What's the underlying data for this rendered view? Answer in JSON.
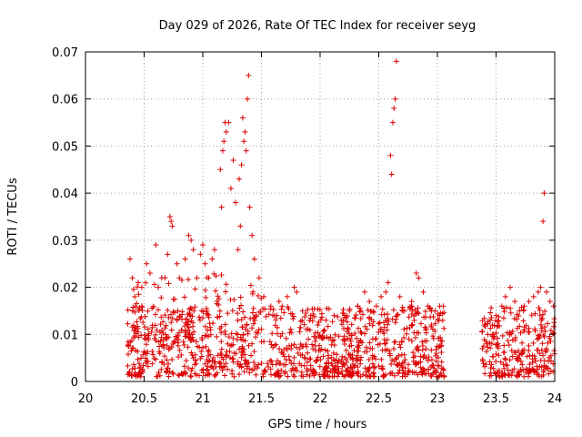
{
  "chart_data": {
    "type": "scatter",
    "title": "Day 029 of 2026, Rate Of TEC Index for receiver seyg",
    "xlabel": "GPS time / hours",
    "ylabel": "ROTI / TECUs",
    "xlim": [
      20,
      24
    ],
    "ylim": [
      0,
      0.07
    ],
    "x_ticks": [
      "20",
      "20.5",
      "21",
      "21.5",
      "22",
      "22.5",
      "23",
      "23.5",
      "24"
    ],
    "y_ticks": [
      "0",
      "0.01",
      "0.02",
      "0.03",
      "0.04",
      "0.05",
      "0.06",
      "0.07"
    ],
    "grid": true,
    "marker": "+",
    "color": "#dd0000",
    "series": [
      {
        "name": "ROTI",
        "points": [
          [
            20.38,
            0.026
          ],
          [
            20.4,
            0.022
          ],
          [
            20.42,
            0.018
          ],
          [
            20.45,
            0.021
          ],
          [
            20.48,
            0.02
          ],
          [
            20.52,
            0.025
          ],
          [
            20.55,
            0.023
          ],
          [
            20.6,
            0.029
          ],
          [
            20.62,
            0.02
          ],
          [
            20.65,
            0.022
          ],
          [
            20.7,
            0.027
          ],
          [
            20.72,
            0.035
          ],
          [
            20.73,
            0.034
          ],
          [
            20.74,
            0.033
          ],
          [
            20.78,
            0.025
          ],
          [
            20.8,
            0.022
          ],
          [
            20.85,
            0.026
          ],
          [
            20.88,
            0.031
          ],
          [
            20.9,
            0.03
          ],
          [
            20.92,
            0.028
          ],
          [
            20.95,
            0.022
          ],
          [
            20.98,
            0.027
          ],
          [
            21.0,
            0.029
          ],
          [
            21.02,
            0.025
          ],
          [
            21.05,
            0.022
          ],
          [
            21.08,
            0.026
          ],
          [
            21.1,
            0.028
          ],
          [
            21.15,
            0.045
          ],
          [
            21.16,
            0.037
          ],
          [
            21.17,
            0.049
          ],
          [
            21.18,
            0.051
          ],
          [
            21.19,
            0.055
          ],
          [
            21.2,
            0.053
          ],
          [
            21.22,
            0.055
          ],
          [
            21.24,
            0.041
          ],
          [
            21.26,
            0.047
          ],
          [
            21.28,
            0.038
          ],
          [
            21.3,
            0.028
          ],
          [
            21.31,
            0.043
          ],
          [
            21.32,
            0.033
          ],
          [
            21.33,
            0.046
          ],
          [
            21.34,
            0.056
          ],
          [
            21.35,
            0.051
          ],
          [
            21.36,
            0.053
          ],
          [
            21.37,
            0.049
          ],
          [
            21.38,
            0.06
          ],
          [
            21.39,
            0.065
          ],
          [
            21.4,
            0.037
          ],
          [
            21.42,
            0.031
          ],
          [
            21.44,
            0.026
          ],
          [
            21.48,
            0.022
          ],
          [
            21.52,
            0.018
          ],
          [
            21.58,
            0.016
          ],
          [
            21.65,
            0.017
          ],
          [
            21.72,
            0.018
          ],
          [
            21.78,
            0.02
          ],
          [
            21.8,
            0.019
          ],
          [
            21.85,
            0.015
          ],
          [
            21.92,
            0.014
          ],
          [
            21.98,
            0.012
          ],
          [
            22.05,
            0.013
          ],
          [
            22.12,
            0.014
          ],
          [
            22.18,
            0.013
          ],
          [
            22.25,
            0.015
          ],
          [
            22.32,
            0.016
          ],
          [
            22.38,
            0.019
          ],
          [
            22.42,
            0.017
          ],
          [
            22.48,
            0.016
          ],
          [
            22.52,
            0.018
          ],
          [
            22.56,
            0.019
          ],
          [
            22.58,
            0.021
          ],
          [
            22.6,
            0.048
          ],
          [
            22.61,
            0.044
          ],
          [
            22.62,
            0.055
          ],
          [
            22.63,
            0.058
          ],
          [
            22.64,
            0.06
          ],
          [
            22.65,
            0.068
          ],
          [
            22.68,
            0.018
          ],
          [
            22.72,
            0.015
          ],
          [
            22.78,
            0.017
          ],
          [
            22.82,
            0.023
          ],
          [
            22.84,
            0.022
          ],
          [
            22.88,
            0.019
          ],
          [
            22.92,
            0.016
          ],
          [
            22.98,
            0.015
          ],
          [
            23.02,
            0.016
          ],
          [
            23.05,
            0.016
          ],
          [
            23.4,
            0.012
          ],
          [
            23.45,
            0.013
          ],
          [
            23.5,
            0.014
          ],
          [
            23.55,
            0.016
          ],
          [
            23.58,
            0.018
          ],
          [
            23.62,
            0.02
          ],
          [
            23.66,
            0.017
          ],
          [
            23.7,
            0.015
          ],
          [
            23.74,
            0.016
          ],
          [
            23.78,
            0.017
          ],
          [
            23.82,
            0.018
          ],
          [
            23.86,
            0.019
          ],
          [
            23.88,
            0.02
          ],
          [
            23.9,
            0.034
          ],
          [
            23.91,
            0.04
          ],
          [
            23.93,
            0.019
          ],
          [
            23.96,
            0.017
          ],
          [
            23.99,
            0.016
          ]
        ]
      }
    ],
    "dense_band": {
      "note": "dense background cloud of points (rendered via script)",
      "segments": [
        [
          20.36,
          23.06
        ],
        [
          23.38,
          24.0
        ]
      ],
      "y_range": [
        0.001,
        0.016
      ]
    }
  }
}
